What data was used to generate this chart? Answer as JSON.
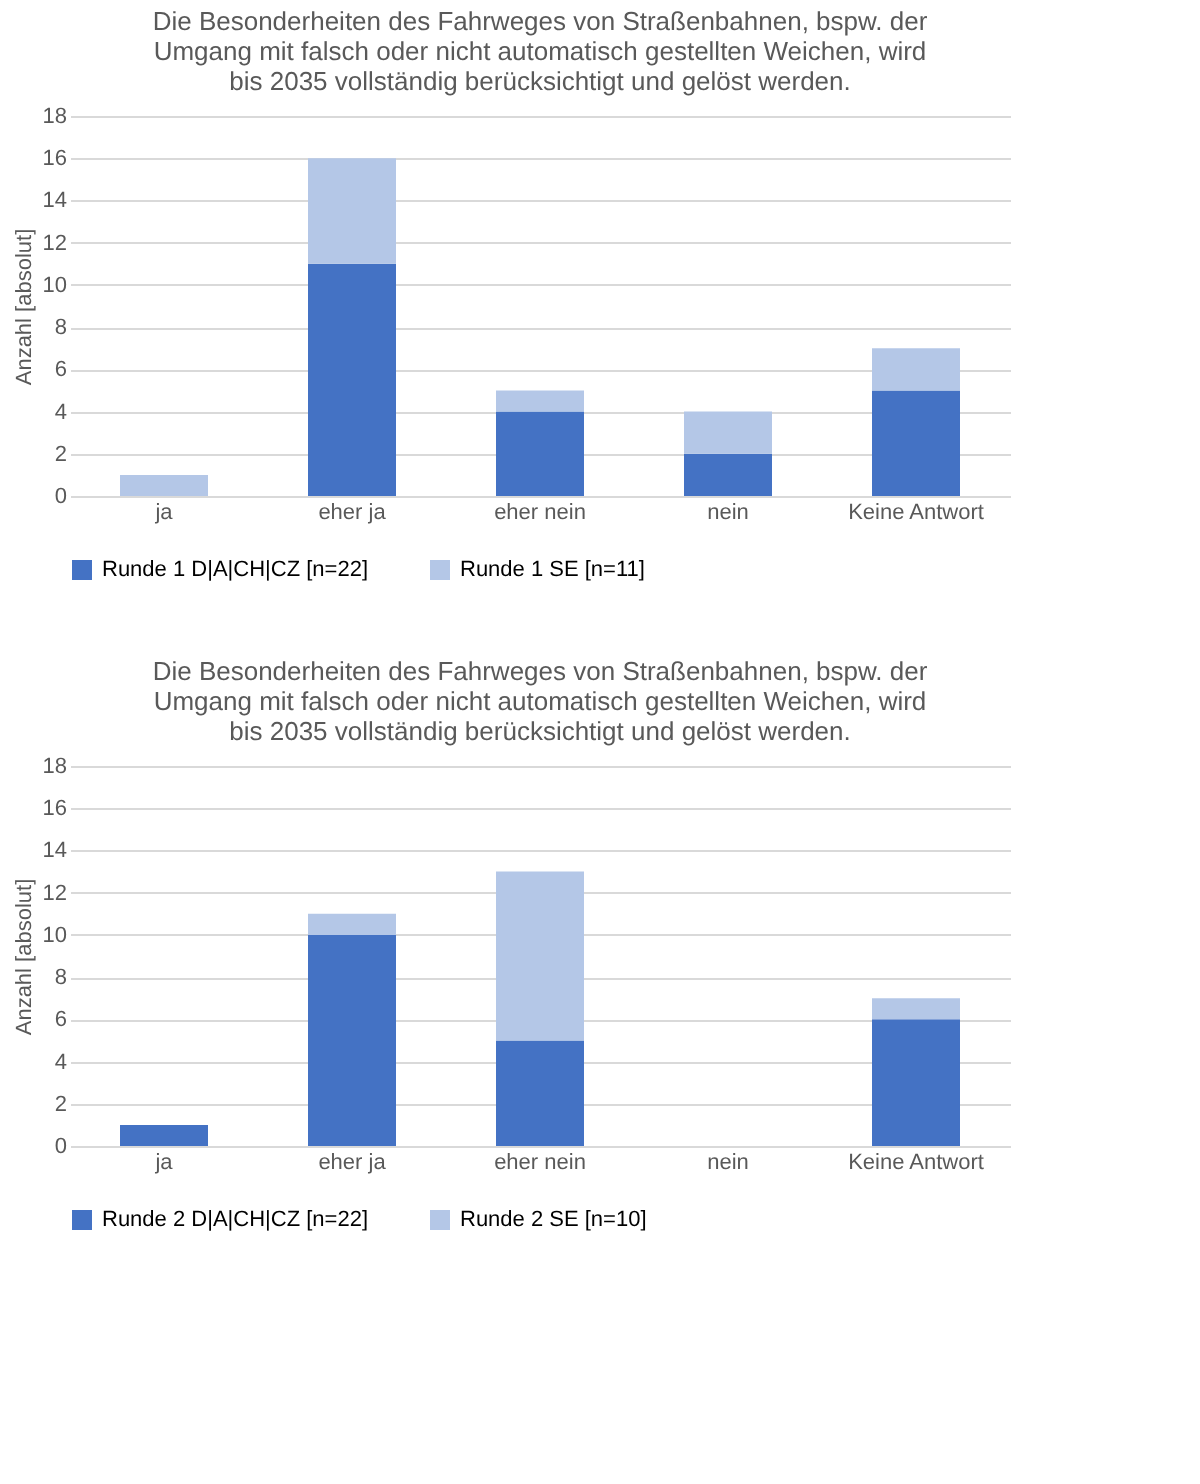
{
  "chart_data": [
    {
      "type": "bar",
      "title": "Die Besonderheiten des Fahrweges von Straßenbahnen, bspw. der\nUmgang mit falsch oder nicht automatisch gestellten Weichen, wird\nbis 2035 vollständig berücksichtigt und gelöst werden.",
      "ylabel": "Anzahl [absolut]",
      "categories": [
        "ja",
        "eher ja",
        "eher nein",
        "nein",
        "Keine Antwort"
      ],
      "stacked": true,
      "ylim": [
        0,
        18
      ],
      "yticks": [
        0,
        2,
        4,
        6,
        8,
        10,
        12,
        14,
        16,
        18
      ],
      "grid": "y",
      "legend": "bottom",
      "series": [
        {
          "name": "Runde 1 D|A|CH|CZ [n=22]",
          "color": "#4472c4",
          "values": [
            0,
            11,
            4,
            2,
            5
          ]
        },
        {
          "name": "Runde 1 SE [n=11]",
          "color": "#b4c7e7",
          "values": [
            1,
            5,
            1,
            2,
            2
          ]
        }
      ]
    },
    {
      "type": "bar",
      "title": "Die Besonderheiten des Fahrweges von Straßenbahnen, bspw. der\nUmgang mit falsch oder nicht automatisch gestellten Weichen, wird\nbis 2035 vollständig berücksichtigt und gelöst werden.",
      "ylabel": "Anzahl [absolut]",
      "categories": [
        "ja",
        "eher ja",
        "eher nein",
        "nein",
        "Keine Antwort"
      ],
      "stacked": true,
      "ylim": [
        0,
        18
      ],
      "yticks": [
        0,
        2,
        4,
        6,
        8,
        10,
        12,
        14,
        16,
        18
      ],
      "grid": "y",
      "legend": "bottom",
      "series": [
        {
          "name": "Runde 2 D|A|CH|CZ [n=22]",
          "color": "#4472c4",
          "values": [
            1,
            10,
            5,
            0,
            6
          ]
        },
        {
          "name": "Runde 2 SE [n=10]",
          "color": "#b4c7e7",
          "values": [
            0,
            1,
            8,
            0,
            1
          ]
        }
      ]
    }
  ]
}
